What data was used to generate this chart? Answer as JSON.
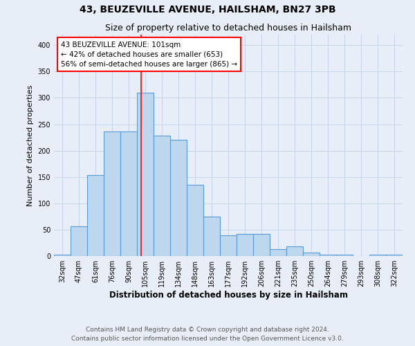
{
  "title": "43, BEUZEVILLE AVENUE, HAILSHAM, BN27 3PB",
  "subtitle": "Size of property relative to detached houses in Hailsham",
  "xlabel": "Distribution of detached houses by size in Hailsham",
  "ylabel": "Number of detached properties",
  "categories": [
    "32sqm",
    "47sqm",
    "61sqm",
    "76sqm",
    "90sqm",
    "105sqm",
    "119sqm",
    "134sqm",
    "148sqm",
    "163sqm",
    "177sqm",
    "192sqm",
    "206sqm",
    "221sqm",
    "235sqm",
    "250sqm",
    "264sqm",
    "279sqm",
    "293sqm",
    "308sqm",
    "322sqm"
  ],
  "values": [
    3,
    57,
    153,
    236,
    236,
    310,
    229,
    221,
    135,
    75,
    40,
    42,
    42,
    13,
    19,
    6,
    3,
    3,
    0,
    3,
    3
  ],
  "bar_color": "#bdd7ee",
  "bar_edge_color": "#5b9bd5",
  "grid_color": "#c8d4e8",
  "background_color": "#e8eef8",
  "annotation_line1": "43 BEUZEVILLE AVENUE: 101sqm",
  "annotation_line2": "← 42% of detached houses are smaller (653)",
  "annotation_line3": "56% of semi-detached houses are larger (865) →",
  "annotation_box_color": "white",
  "annotation_box_edge_color": "red",
  "vline_color": "red",
  "vline_x": 4.73,
  "ylim": [
    0,
    420
  ],
  "yticks": [
    0,
    50,
    100,
    150,
    200,
    250,
    300,
    350,
    400
  ],
  "footer_line1": "Contains HM Land Registry data © Crown copyright and database right 2024.",
  "footer_line2": "Contains public sector information licensed under the Open Government Licence v3.0.",
  "title_fontsize": 10,
  "subtitle_fontsize": 9,
  "ylabel_fontsize": 8,
  "xlabel_fontsize": 8.5,
  "tick_fontsize": 7,
  "annotation_fontsize": 7.5,
  "footer_fontsize": 6.5
}
